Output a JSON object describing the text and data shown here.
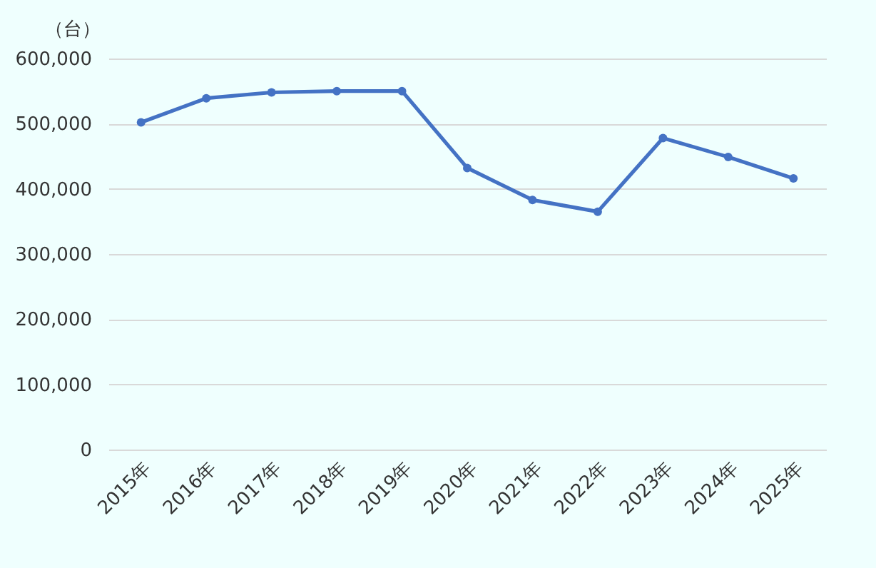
{
  "chart_data": {
    "type": "line",
    "ylabel": "（台）",
    "categories": [
      "2015年",
      "2016年",
      "2017年",
      "2018年",
      "2019年",
      "2020年",
      "2021年",
      "2022年",
      "2023年",
      "2024年",
      "2025年"
    ],
    "series": [
      {
        "color": "#4472c4",
        "values": [
          502000,
          539000,
          548000,
          550000,
          550000,
          432000,
          383000,
          365000,
          478000,
          449000,
          416000
        ]
      }
    ],
    "ylim": [
      0,
      600000
    ],
    "yticks": [
      0,
      {
        "value": 100000,
        "label": "100,000"
      },
      {
        "value": 200000,
        "label": "200,000"
      },
      {
        "value": 300000,
        "label": "300,000"
      },
      {
        "value": 400000,
        "label": "400,000"
      },
      {
        "value": 500000,
        "label": "500,000"
      },
      {
        "value": 600000,
        "label": "600,000"
      }
    ],
    "grid": "y",
    "marker": "circle",
    "line_style": "solid"
  }
}
